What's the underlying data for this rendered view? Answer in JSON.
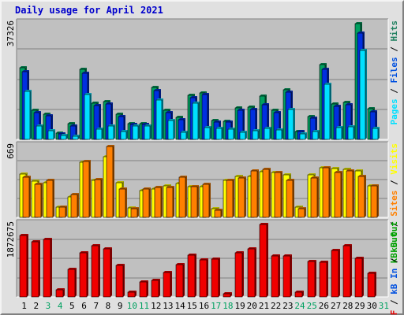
{
  "chart_data": {
    "type": "bar",
    "title": "Daily usage for April 2021",
    "categories": [
      "1",
      "2",
      "3",
      "4",
      "5",
      "6",
      "7",
      "8",
      "9",
      "10",
      "11",
      "12",
      "13",
      "14",
      "15",
      "16",
      "17",
      "18",
      "19",
      "20",
      "21",
      "22",
      "23",
      "24",
      "25",
      "26",
      "27",
      "28",
      "29",
      "30",
      "31"
    ],
    "weekend_days": [
      3,
      4,
      10,
      11,
      17,
      18,
      24,
      25,
      31
    ],
    "panels": [
      {
        "id": "hits-files-pages",
        "ymax_label": "37326",
        "ymax": 37326,
        "legend": [
          {
            "text": "Pages",
            "color": "#00e0ff"
          },
          {
            "text": "Files",
            "color": "#0050e0"
          },
          {
            "text": "Hits",
            "color": "#208060"
          }
        ],
        "legend_separator": " / ",
        "series": [
          {
            "name": "Hits",
            "color": "#00a060",
            "values": [
              23000,
              9400,
              8200,
              2100,
              5000,
              22500,
              11800,
              12300,
              8100,
              5100,
              5100,
              16700,
              9400,
              7000,
              14200,
              15100,
              6000,
              5900,
              10200,
              10300,
              14000,
              9300,
              16000,
              2600,
              7300,
              24000,
              11500,
              12000,
              37326,
              9800,
              0
            ]
          },
          {
            "name": "Files",
            "color": "#0030e0",
            "values": [
              21800,
              8700,
              7700,
              1800,
              4200,
              21300,
              11000,
              11500,
              7400,
              4900,
              4800,
              15800,
              8700,
              6400,
              13500,
              14400,
              5700,
              5600,
              9500,
              9600,
              11200,
              8600,
              15200,
              2500,
              6800,
              22500,
              10700,
              11200,
              34200,
              9000,
              0
            ]
          },
          {
            "name": "Pages",
            "color": "#00e0ff",
            "values": [
              15500,
              4200,
              2900,
              1200,
              1100,
              14400,
              3200,
              4300,
              2500,
              4400,
              4400,
              12600,
              6200,
              2400,
              11700,
              3800,
              3500,
              3200,
              2300,
              2800,
              3600,
              3100,
              9700,
              1800,
              2600,
              17800,
              3800,
              4100,
              28700,
              3600,
              0
            ]
          }
        ]
      },
      {
        "id": "visits-sites-out",
        "ymax_label": "669",
        "ymax": 669,
        "legend": [
          {
            "text": "kB Out",
            "color": "#00a000"
          },
          {
            "text": "Sites",
            "color": "#ff8000"
          },
          {
            "text": "Visits",
            "color": "#ffff00"
          }
        ],
        "legend_separator": " / ",
        "series": [
          {
            "name": "Visits",
            "color": "#ffff00",
            "values": [
              410,
              340,
              330,
              100,
              190,
              520,
              350,
              570,
              330,
              90,
              255,
              270,
              300,
              320,
              290,
              290,
              80,
              350,
              390,
              390,
              430,
              420,
              400,
              100,
              400,
              470,
              460,
              450,
              440,
              300,
              0
            ]
          },
          {
            "name": "Sites",
            "color": "#ff8000",
            "values": [
              380,
              310,
              350,
              95,
              215,
              530,
              360,
              669,
              270,
              85,
              270,
              280,
              280,
              380,
              290,
              310,
              70,
              350,
              370,
              440,
              450,
              420,
              350,
              80,
              370,
              470,
              420,
              440,
              390,
              300,
              0
            ]
          }
        ]
      },
      {
        "id": "kb",
        "ymax_label": "1872675",
        "ymax": 1872675,
        "legend": [
          {
            "text": "kB F",
            "color": "#e00000"
          },
          {
            "text": "kB In",
            "color": "#0050e0"
          },
          {
            "text": "kB Out",
            "color": "#00a000"
          }
        ],
        "legend_separator": " / ",
        "series": [
          {
            "name": "kB F",
            "color": "#f00000",
            "values": [
              1580000,
              1430000,
              1490000,
              190000,
              710000,
              1130000,
              1330000,
              1240000,
              810000,
              120000,
              390000,
              430000,
              630000,
              830000,
              1070000,
              960000,
              970000,
              80000,
              1130000,
              1250000,
              1872675,
              1050000,
              1050000,
              120000,
              920000,
              900000,
              1210000,
              1330000,
              1000000,
              620000,
              0
            ]
          }
        ]
      }
    ]
  }
}
